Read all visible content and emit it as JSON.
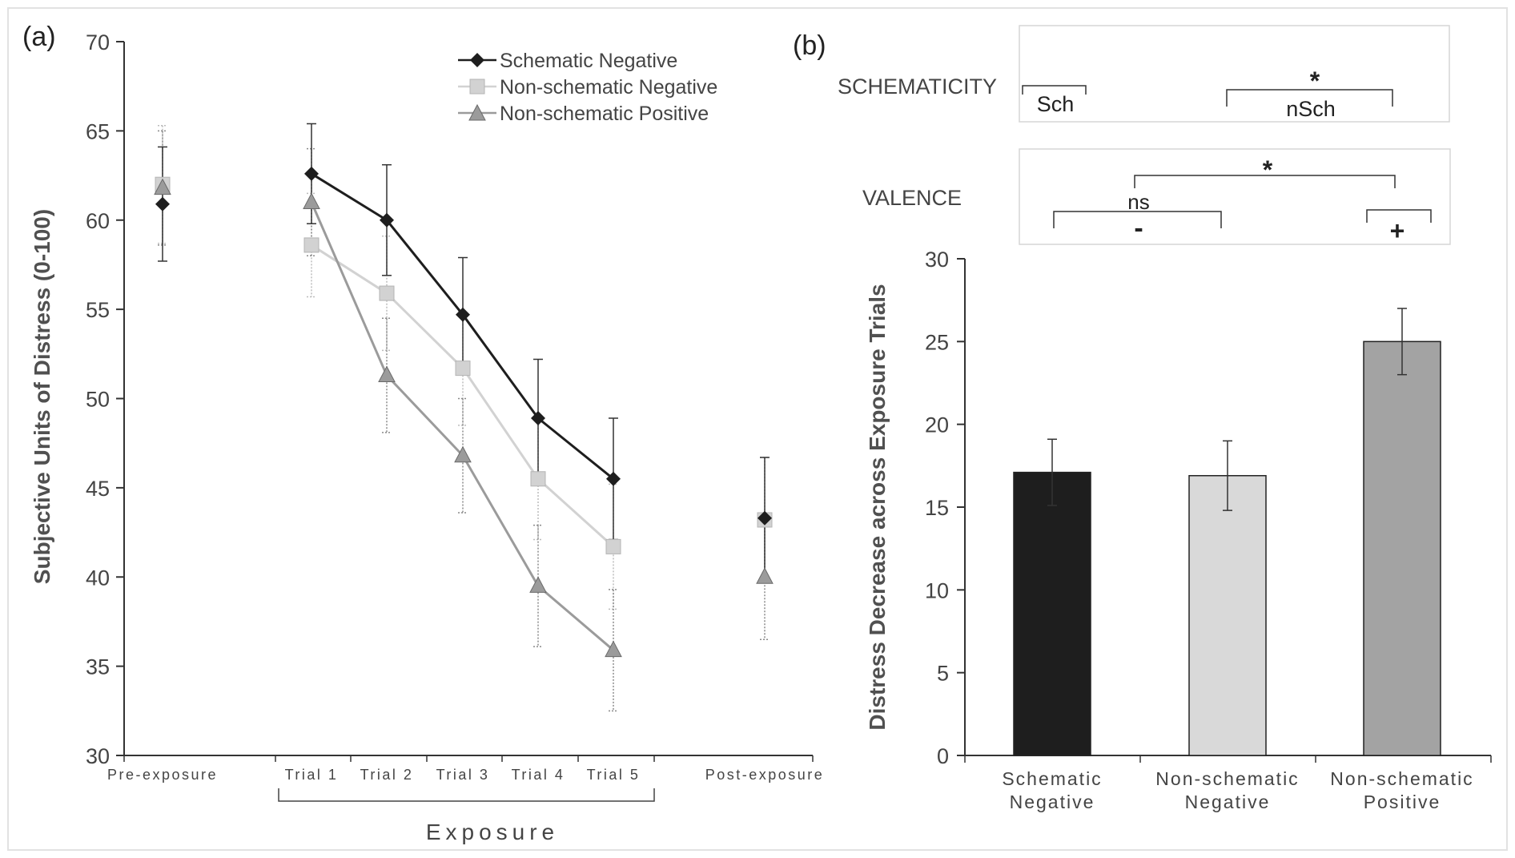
{
  "chart_data": [
    {
      "panel": "(a)",
      "type": "line",
      "ylabel": "Subjective Units of Distress (0-100)",
      "xlabel": "Exposure",
      "ylim": [
        30,
        70
      ],
      "yticks": [
        30,
        35,
        40,
        45,
        50,
        55,
        60,
        65,
        70
      ],
      "categories": [
        "Pre-exposure",
        "Trial 1",
        "Trial 2",
        "Trial 3",
        "Trial 4",
        "Trial 5",
        "Post-exposure"
      ],
      "legend_position": "top-right",
      "grid": false,
      "series": [
        {
          "name": "Schematic Negative",
          "color": "#1e1e1e",
          "marker": "diamond",
          "values": [
            60.9,
            62.6,
            60.0,
            54.7,
            48.9,
            45.5,
            43.3
          ],
          "err": [
            3.2,
            2.8,
            3.1,
            3.2,
            3.3,
            3.4,
            3.4
          ]
        },
        {
          "name": "Non-schematic Negative",
          "color": "#d2d2d2",
          "marker": "square",
          "values": [
            62.0,
            58.6,
            55.9,
            51.7,
            45.5,
            41.7,
            43.2
          ],
          "err": [
            3.3,
            2.9,
            3.2,
            3.2,
            3.4,
            3.5,
            3.5
          ]
        },
        {
          "name": "Non-schematic Positive",
          "color": "#9b9b9b",
          "marker": "triangle",
          "values": [
            61.8,
            61.0,
            51.3,
            46.8,
            39.5,
            35.9,
            40.0
          ],
          "err": [
            3.2,
            3.0,
            3.2,
            3.2,
            3.4,
            3.4,
            3.5
          ]
        }
      ]
    },
    {
      "panel": "(b)",
      "type": "bar",
      "ylabel": "Distress Decrease across Exposure Trials",
      "ylim": [
        0,
        30
      ],
      "yticks": [
        0,
        5,
        10,
        15,
        20,
        25,
        30
      ],
      "categories": [
        [
          "Schematic",
          "Negative"
        ],
        [
          "Non-schematic",
          "Negative"
        ],
        [
          "Non-schematic",
          "Positive"
        ]
      ],
      "values": [
        17.1,
        16.9,
        25.0
      ],
      "err": [
        2.0,
        2.1,
        2.0
      ],
      "colors": [
        "#1e1e1e",
        "#d9d9d9",
        "#a3a3a3"
      ],
      "annotations": {
        "schematicity": {
          "label": "SCHEMATICITY",
          "left": "Sch",
          "right": "nSch",
          "sig": "*"
        },
        "valence": {
          "label": "VALENCE",
          "neg": "-",
          "pos": "+",
          "ns": "ns",
          "sig": "*"
        }
      }
    }
  ]
}
